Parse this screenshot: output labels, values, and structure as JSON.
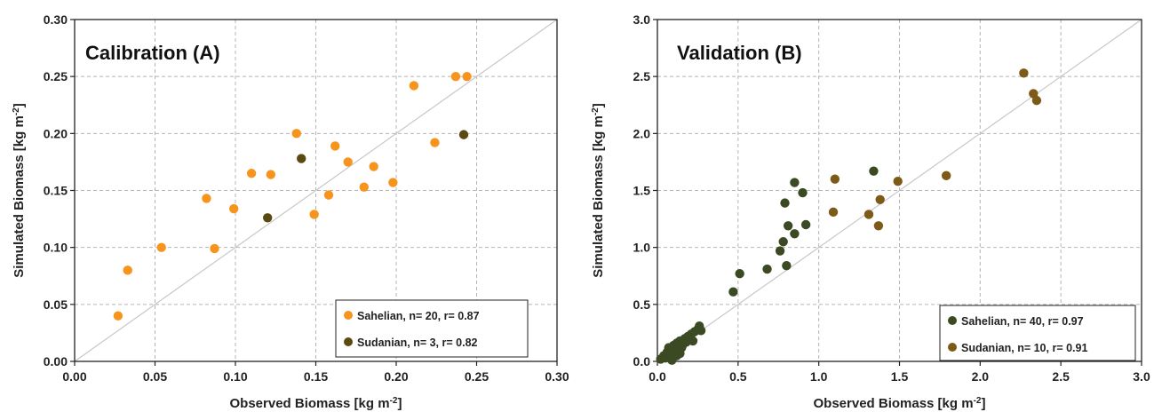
{
  "chart_data": [
    {
      "type": "scatter",
      "title": "Calibration (A)",
      "xlabel": "Observed Biomass [kg m-2]",
      "ylabel": "Simulated Biomass [kg m-2]",
      "xlim": [
        0,
        0.3
      ],
      "ylim": [
        0,
        0.3
      ],
      "xticks": [
        "0.00",
        "0.05",
        "0.10",
        "0.15",
        "0.20",
        "0.25",
        "0.30"
      ],
      "yticks": [
        "0.00",
        "0.05",
        "0.10",
        "0.15",
        "0.20",
        "0.25",
        "0.30"
      ],
      "grid": true,
      "one_to_one_line": true,
      "legend_position": "bottom-right",
      "series": [
        {
          "name": "Sahelian, n= 20, r= 0.87",
          "color": "#f7941d",
          "points": [
            [
              0.027,
              0.04
            ],
            [
              0.033,
              0.08
            ],
            [
              0.054,
              0.1
            ],
            [
              0.082,
              0.143
            ],
            [
              0.087,
              0.099
            ],
            [
              0.099,
              0.134
            ],
            [
              0.11,
              0.165
            ],
            [
              0.122,
              0.164
            ],
            [
              0.138,
              0.2
            ],
            [
              0.149,
              0.129
            ],
            [
              0.158,
              0.146
            ],
            [
              0.162,
              0.189
            ],
            [
              0.17,
              0.175
            ],
            [
              0.18,
              0.153
            ],
            [
              0.186,
              0.171
            ],
            [
              0.198,
              0.157
            ],
            [
              0.211,
              0.242
            ],
            [
              0.224,
              0.192
            ],
            [
              0.237,
              0.25
            ],
            [
              0.244,
              0.25
            ]
          ]
        },
        {
          "name": "Sudanian, n= 3, r= 0.82",
          "color": "#5a4a12",
          "points": [
            [
              0.12,
              0.126
            ],
            [
              0.141,
              0.178
            ],
            [
              0.242,
              0.199
            ]
          ]
        }
      ]
    },
    {
      "type": "scatter",
      "title": "Validation (B)",
      "xlabel": "Observed Biomass [kg m-2]",
      "ylabel": "Simulated Biomass [kg m-2]",
      "xlim": [
        0,
        3.0
      ],
      "ylim": [
        0,
        3.0
      ],
      "xticks": [
        "0.0",
        "0.5",
        "1.0",
        "1.5",
        "2.0",
        "2.5",
        "3.0"
      ],
      "yticks": [
        "0.0",
        "0.5",
        "1.0",
        "1.5",
        "2.0",
        "2.5",
        "3.0"
      ],
      "grid": true,
      "one_to_one_line": true,
      "legend_position": "bottom-right",
      "series": [
        {
          "name": "Sahelian, n= 40, r= 0.97",
          "color": "#3b4a23",
          "points": [
            [
              0.02,
              0.02
            ],
            [
              0.04,
              0.05
            ],
            [
              0.05,
              0.03
            ],
            [
              0.06,
              0.08
            ],
            [
              0.07,
              0.12
            ],
            [
              0.08,
              0.05
            ],
            [
              0.09,
              0.1
            ],
            [
              0.1,
              0.14
            ],
            [
              0.11,
              0.08
            ],
            [
              0.12,
              0.16
            ],
            [
              0.13,
              0.1
            ],
            [
              0.14,
              0.18
            ],
            [
              0.15,
              0.12
            ],
            [
              0.16,
              0.15
            ],
            [
              0.17,
              0.2
            ],
            [
              0.18,
              0.17
            ],
            [
              0.19,
              0.22
            ],
            [
              0.2,
              0.19
            ],
            [
              0.21,
              0.24
            ],
            [
              0.22,
              0.18
            ],
            [
              0.23,
              0.26
            ],
            [
              0.25,
              0.28
            ],
            [
              0.26,
              0.31
            ],
            [
              0.27,
              0.27
            ],
            [
              0.47,
              0.61
            ],
            [
              0.51,
              0.77
            ],
            [
              0.68,
              0.81
            ],
            [
              0.76,
              0.97
            ],
            [
              0.78,
              1.05
            ],
            [
              0.79,
              1.39
            ],
            [
              0.8,
              0.84
            ],
            [
              0.81,
              1.19
            ],
            [
              0.85,
              1.12
            ],
            [
              0.85,
              1.57
            ],
            [
              0.9,
              1.48
            ],
            [
              0.92,
              1.2
            ],
            [
              1.34,
              1.67
            ],
            [
              0.12,
              0.05
            ],
            [
              0.14,
              0.07
            ],
            [
              0.09,
              0.01
            ]
          ]
        },
        {
          "name": "Sudanian, n= 10, r= 0.91",
          "color": "#7d5a17",
          "points": [
            [
              1.09,
              1.31
            ],
            [
              1.1,
              1.6
            ],
            [
              1.31,
              1.29
            ],
            [
              1.37,
              1.19
            ],
            [
              1.38,
              1.42
            ],
            [
              1.49,
              1.58
            ],
            [
              1.79,
              1.63
            ],
            [
              2.27,
              2.53
            ],
            [
              2.33,
              2.35
            ],
            [
              2.35,
              2.29
            ]
          ]
        }
      ]
    }
  ]
}
